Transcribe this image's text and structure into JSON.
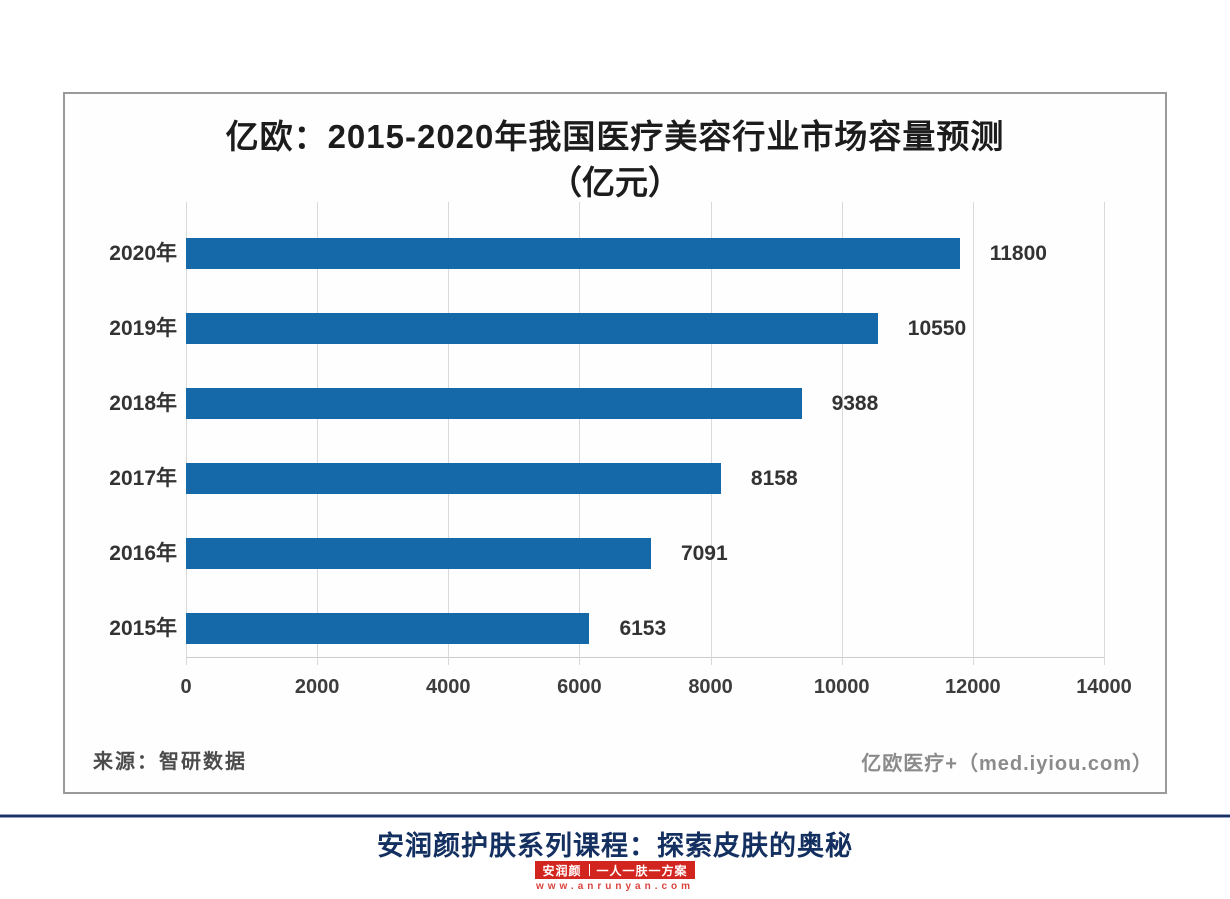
{
  "chart_panel": {
    "title_line1": "亿欧：2015-2020年我国医疗美容行业市场容量预测",
    "title_line2": "（亿元）",
    "source_left": "来源：智研数据",
    "source_right": "亿欧医疗+（med.iyiou.com）"
  },
  "chart_data": {
    "type": "bar",
    "orientation": "horizontal",
    "title": "亿欧：2015-2020年我国医疗美容行业市场容量预测（亿元）",
    "categories": [
      "2020年",
      "2019年",
      "2018年",
      "2017年",
      "2016年",
      "2015年"
    ],
    "values": [
      11800,
      10550,
      9388,
      8158,
      7091,
      6153
    ],
    "xlabel": "",
    "ylabel": "",
    "xlim": [
      0,
      14000
    ],
    "x_ticks": [
      0,
      2000,
      4000,
      6000,
      8000,
      10000,
      12000,
      14000
    ],
    "grid": true,
    "legend": false,
    "value_labels": true,
    "bar_color": "#1669a9",
    "gridline_color": "#d9d9d9"
  },
  "footer": {
    "headline": "安润颜护肤系列课程：探索皮肤的奥秘",
    "badge_name": "安润颜",
    "badge_slogan": "一人一肤一方案",
    "website": "www.anrunyan.com",
    "navy": "#1c2f5e",
    "red": "#d3251f"
  }
}
